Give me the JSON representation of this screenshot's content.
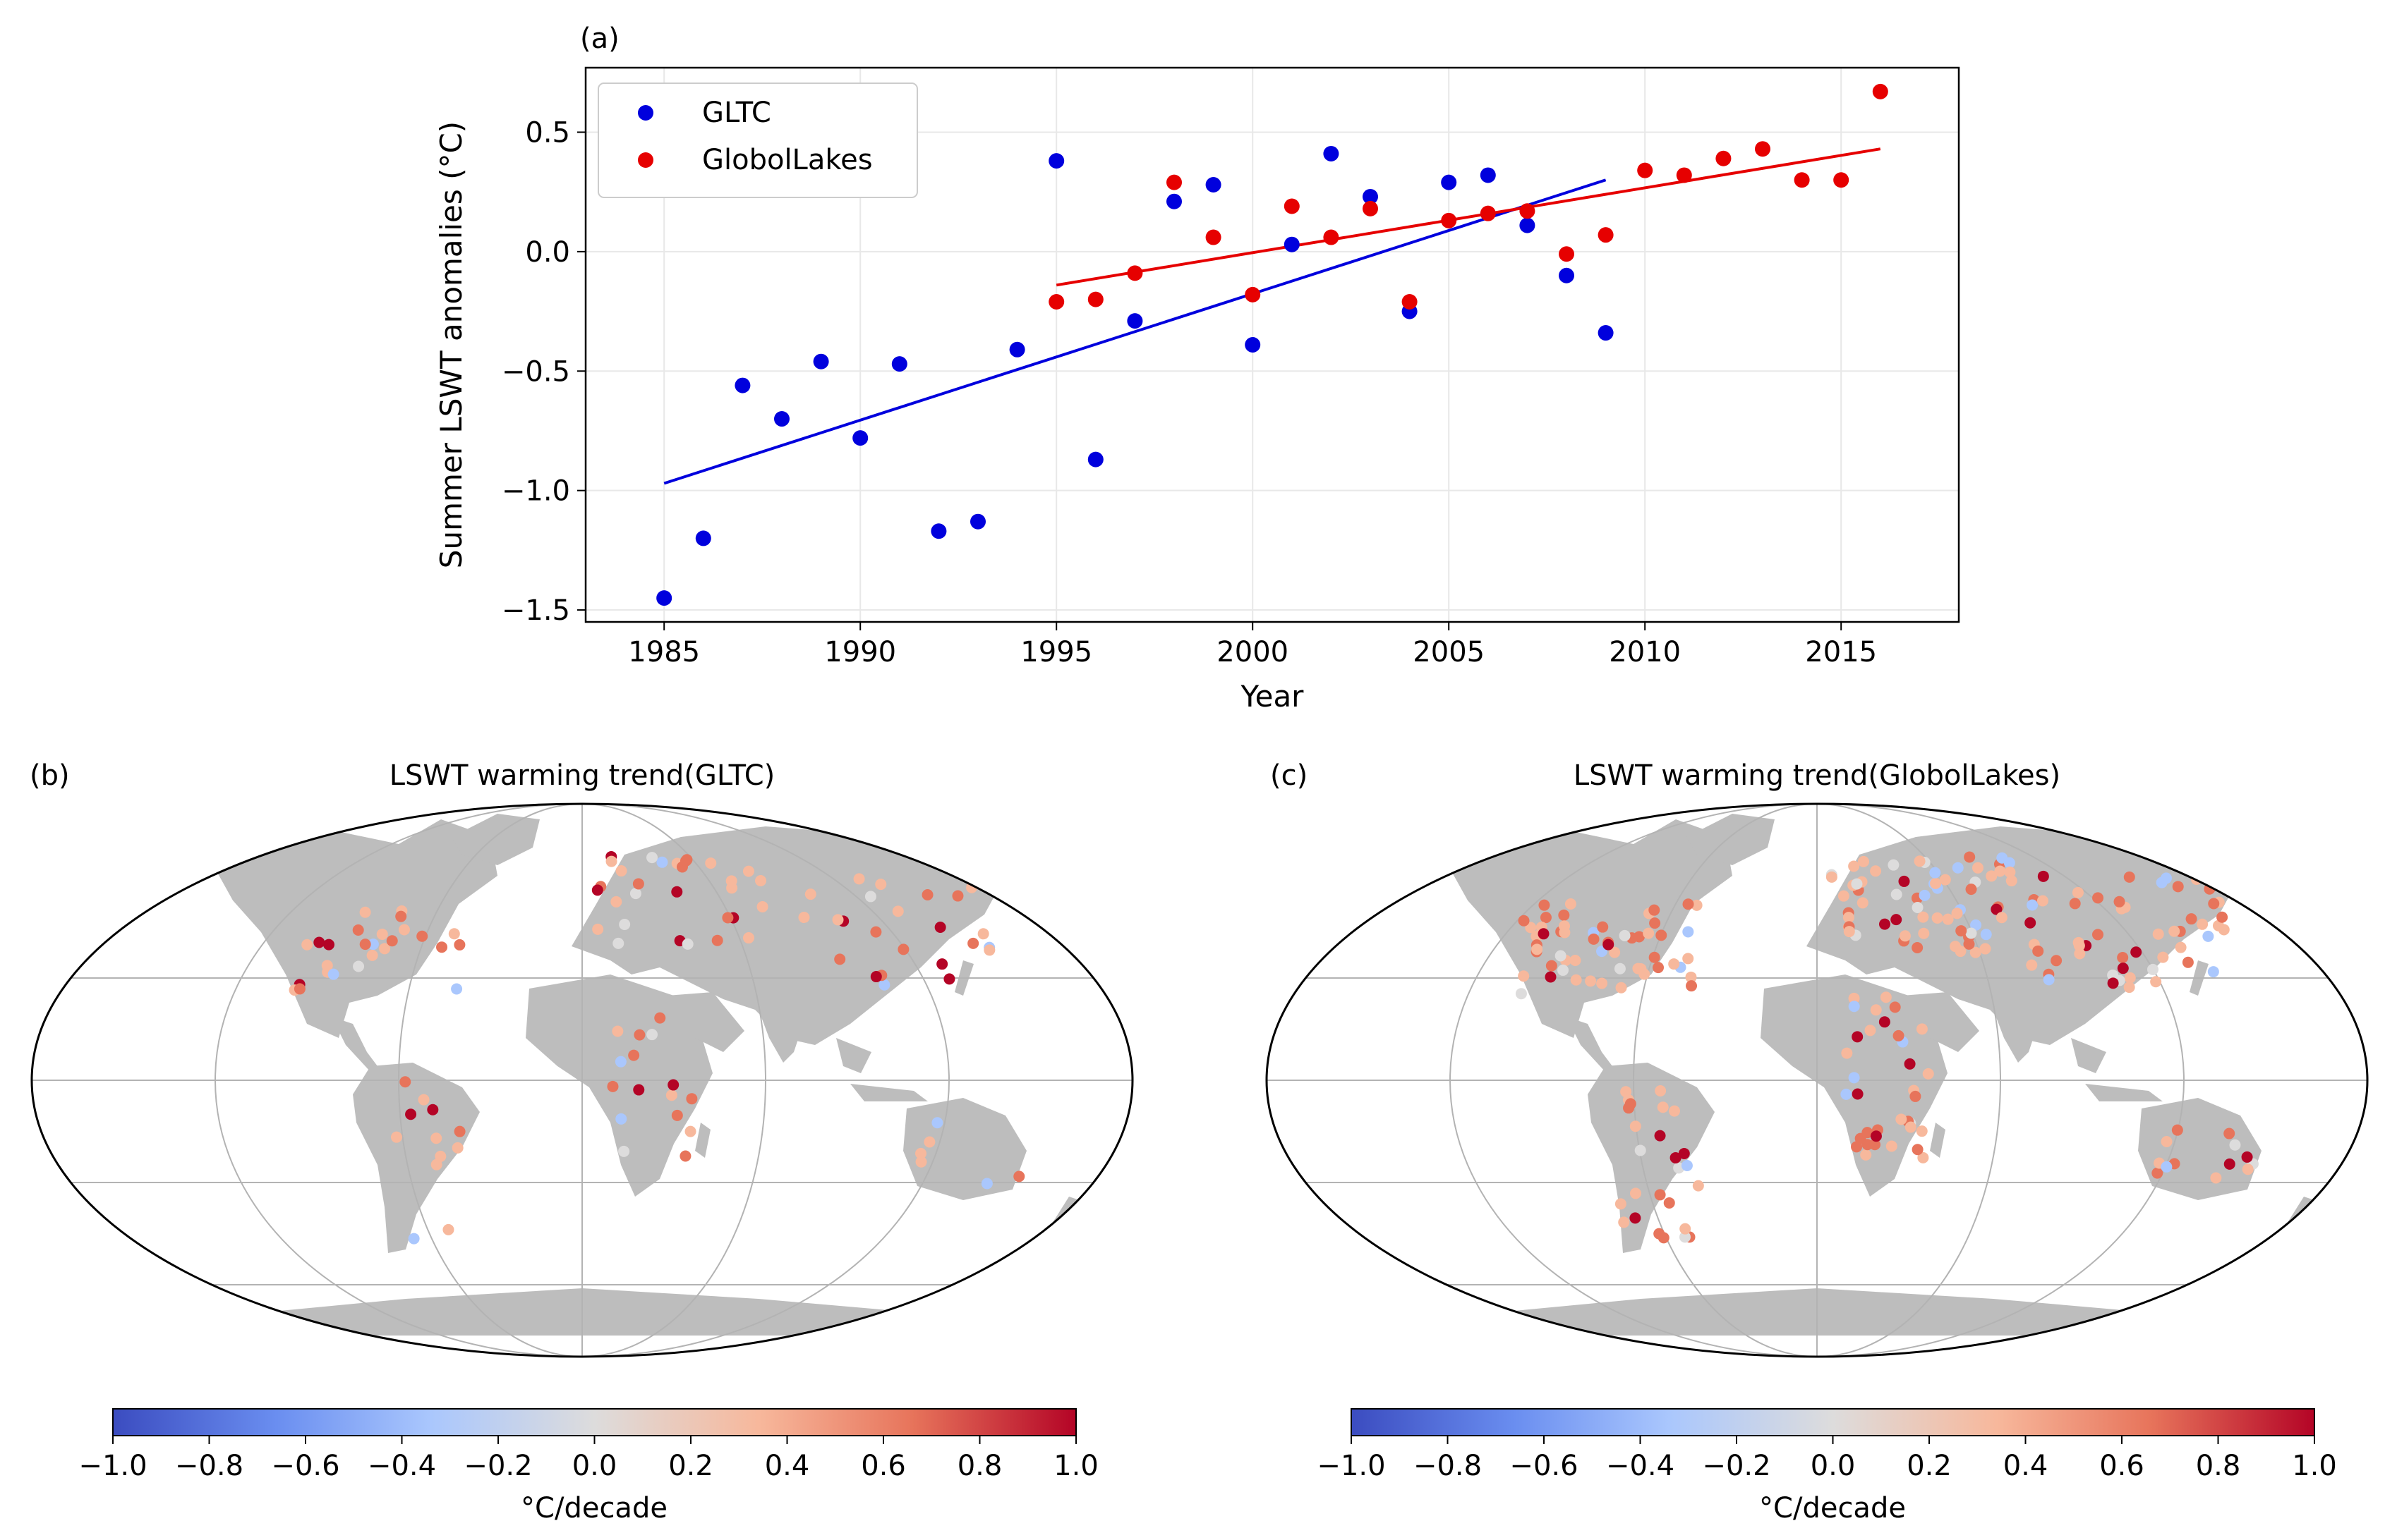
{
  "panels": {
    "a": {
      "label": "(a)",
      "chart_data": {
        "type": "scatter",
        "title": "",
        "xlabel": "Year",
        "ylabel": "Summer LSWT anomalies (°C)",
        "xlim": [
          1983,
          2018
        ],
        "ylim": [
          -1.55,
          0.77
        ],
        "xticks": [
          1985,
          1990,
          1995,
          2000,
          2005,
          2010,
          2015
        ],
        "yticks": [
          -1.5,
          -1.0,
          -0.5,
          0.0,
          0.5
        ],
        "ytick_labels": [
          "−1.5",
          "−1.0",
          "−0.5",
          "0.0",
          "0.5"
        ],
        "grid": true,
        "legend_position": "top-left",
        "series": [
          {
            "name": "GLTC",
            "color": "#0000dd",
            "x": [
              1985,
              1986,
              1987,
              1988,
              1989,
              1990,
              1991,
              1992,
              1993,
              1994,
              1995,
              1996,
              1997,
              1998,
              1999,
              2000,
              2001,
              2002,
              2003,
              2004,
              2005,
              2006,
              2007,
              2008,
              2009
            ],
            "y": [
              -1.45,
              -1.2,
              -0.56,
              -0.7,
              -0.46,
              -0.78,
              -0.47,
              -1.17,
              -1.13,
              -0.41,
              0.38,
              -0.87,
              -0.29,
              0.21,
              0.28,
              -0.39,
              0.03,
              0.41,
              0.23,
              -0.25,
              0.29,
              0.32,
              0.11,
              -0.1,
              -0.34
            ],
            "trend": {
              "x": [
                1985,
                2009
              ],
              "y": [
                -0.97,
                0.3
              ]
            }
          },
          {
            "name": "GlobolLakes",
            "color": "#e60000",
            "x": [
              1995,
              1996,
              1997,
              1998,
              1999,
              2000,
              2001,
              2002,
              2003,
              2004,
              2005,
              2006,
              2007,
              2008,
              2009,
              2010,
              2011,
              2012,
              2013,
              2014,
              2015,
              2016
            ],
            "y": [
              -0.21,
              -0.2,
              -0.09,
              0.29,
              0.06,
              -0.18,
              0.19,
              0.06,
              0.18,
              -0.21,
              0.13,
              0.16,
              0.17,
              -0.01,
              0.07,
              0.34,
              0.32,
              0.39,
              0.43,
              0.3,
              0.3,
              0.67
            ],
            "trend": {
              "x": [
                1995,
                2016
              ],
              "y": [
                -0.14,
                0.43
              ]
            }
          }
        ]
      }
    },
    "b": {
      "label": "(b)",
      "title": "LSWT warming trend(GLTC)",
      "colorbar": {
        "label": "°C/decade",
        "range": [
          -1.0,
          1.0
        ],
        "ticks": [
          -1.0,
          -0.8,
          -0.6,
          -0.4,
          -0.2,
          0.0,
          0.2,
          0.4,
          0.6,
          0.8,
          1.0
        ],
        "tick_labels": [
          "−1.0",
          "−0.8",
          "−0.6",
          "−0.4",
          "−0.2",
          "0.0",
          "0.2",
          "0.4",
          "0.6",
          "0.8",
          "1.0"
        ],
        "colors": [
          "#3b4cc0",
          "#7093f3",
          "#aac7fd",
          "#dddcdc",
          "#f7b89c",
          "#e7745b",
          "#b40426"
        ]
      }
    },
    "c": {
      "label": "(c)",
      "title": "LSWT warming trend(GlobolLakes)",
      "colorbar": {
        "label": "°C/decade",
        "range": [
          -1.0,
          1.0
        ],
        "ticks": [
          -1.0,
          -0.8,
          -0.6,
          -0.4,
          -0.2,
          0.0,
          0.2,
          0.4,
          0.6,
          0.8,
          1.0
        ],
        "tick_labels": [
          "−1.0",
          "−0.8",
          "−0.6",
          "−0.4",
          "−0.2",
          "0.0",
          "0.2",
          "0.4",
          "0.6",
          "0.8",
          "1.0"
        ],
        "colors": [
          "#3b4cc0",
          "#7093f3",
          "#aac7fd",
          "#dddcdc",
          "#f7b89c",
          "#e7745b",
          "#b40426"
        ]
      }
    }
  }
}
